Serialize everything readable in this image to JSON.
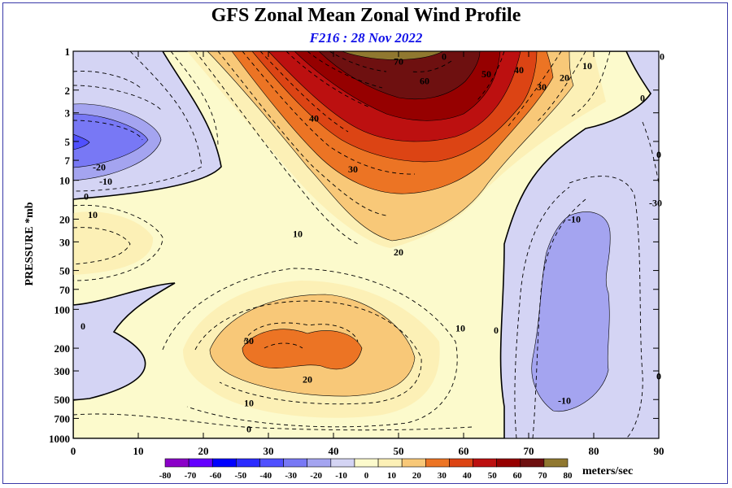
{
  "title": "GFS Zonal Mean Zonal Wind Profile",
  "subtitle": "F216 : 28 Nov 2022",
  "chart_data": {
    "type": "contour",
    "title": "GFS Zonal Mean Zonal Wind Profile",
    "subtitle": "F216 : 28 Nov 2022",
    "xlabel": "",
    "ylabel": "PRESSURE *mb",
    "xlim": [
      0,
      90
    ],
    "ylim": [
      1000,
      1
    ],
    "y_scale": "log",
    "x_ticks": [
      0,
      10,
      20,
      30,
      40,
      50,
      60,
      70,
      80,
      90
    ],
    "y_ticks": [
      1,
      2,
      3,
      5,
      7,
      10,
      20,
      30,
      50,
      70,
      100,
      200,
      300,
      500,
      700,
      1000
    ],
    "colorbar": {
      "units": "meters/sec",
      "levels": [
        -80,
        -70,
        -60,
        -50,
        -40,
        -30,
        -20,
        -10,
        0,
        10,
        20,
        30,
        40,
        50,
        60,
        70,
        80
      ],
      "colors": [
        "#8b00c8",
        "#6400ff",
        "#0000ff",
        "#2b2bff",
        "#5050ff",
        "#7878f5",
        "#a4a4f0",
        "#d4d4f4",
        "#fcfacc",
        "#fcf0b6",
        "#f8c878",
        "#ec7424",
        "#dc4414",
        "#bc1010",
        "#960000",
        "#6e1010",
        "#907830"
      ]
    },
    "contour_labels": [
      {
        "text": "0",
        "x": 57,
        "p": 1.1
      },
      {
        "text": "70",
        "x": 50,
        "p": 1.2
      },
      {
        "text": "60",
        "x": 54,
        "p": 1.7
      },
      {
        "text": "50",
        "x": 63.5,
        "p": 1.5
      },
      {
        "text": "40",
        "x": 68.5,
        "p": 1.4
      },
      {
        "text": "30",
        "x": 72,
        "p": 1.9
      },
      {
        "text": "20",
        "x": 75.5,
        "p": 1.6
      },
      {
        "text": "10",
        "x": 79,
        "p": 1.3
      },
      {
        "text": "0",
        "x": 90.5,
        "p": 1.1
      },
      {
        "text": "0",
        "x": 87.5,
        "p": 2.3
      },
      {
        "text": "40",
        "x": 37,
        "p": 3.3
      },
      {
        "text": "30",
        "x": 43,
        "p": 8.2
      },
      {
        "text": "20",
        "x": 50,
        "p": 36
      },
      {
        "text": "-20",
        "x": 4,
        "p": 7.9
      },
      {
        "text": "-10",
        "x": 5,
        "p": 10.2
      },
      {
        "text": "0",
        "x": 2,
        "p": 13.3
      },
      {
        "text": "10",
        "x": 3,
        "p": 18.5
      },
      {
        "text": "10",
        "x": 34.5,
        "p": 26
      },
      {
        "text": "0",
        "x": 90,
        "p": 6.3
      },
      {
        "text": "-10",
        "x": 77,
        "p": 20
      },
      {
        "text": "-30",
        "x": 89.5,
        "p": 15
      },
      {
        "text": "0",
        "x": 1.5,
        "p": 135
      },
      {
        "text": "30",
        "x": 27,
        "p": 175
      },
      {
        "text": "20",
        "x": 36,
        "p": 350
      },
      {
        "text": "10",
        "x": 59.5,
        "p": 140
      },
      {
        "text": "0",
        "x": 65,
        "p": 145
      },
      {
        "text": "10",
        "x": 27,
        "p": 530
      },
      {
        "text": "0",
        "x": 27,
        "p": 845
      },
      {
        "text": "-10",
        "x": 75.5,
        "p": 510
      },
      {
        "text": "0",
        "x": 90,
        "p": 330
      }
    ]
  }
}
